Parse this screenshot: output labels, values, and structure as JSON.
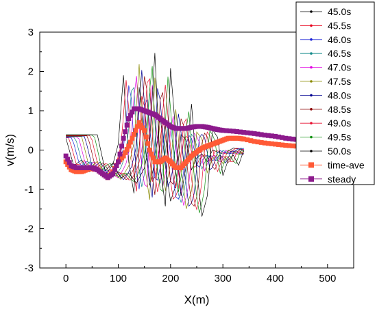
{
  "chart_data": {
    "type": "line",
    "title": "",
    "xlabel": "X(m)",
    "ylabel": "v(m/s)",
    "xlim": [
      -50,
      550
    ],
    "ylim": [
      -3,
      3
    ],
    "x_ticks": [
      0,
      100,
      200,
      300,
      400,
      500
    ],
    "y_ticks": [
      -3,
      -2,
      -1,
      0,
      1,
      2,
      3
    ],
    "grid": false,
    "legend": {
      "placement": "top-right, outside plot border"
    },
    "colors": {
      "45.0s": "#000000",
      "45.5s": "#e8001c",
      "46.0s": "#1a22d6",
      "46.5s": "#138a8a",
      "47.0s": "#e000e0",
      "47.5s": "#8a8a00",
      "48.0s": "#000090",
      "48.5s": "#8a0000",
      "49.0s": "#e81030",
      "49.5s": "#109010",
      "50.0s": "#000000",
      "time-ave": "#ff5a36",
      "steady": "#8c1a8c"
    },
    "series": [
      {
        "name": "45.0s",
        "marker": "square-small",
        "shift": 0,
        "x": [
          0,
          15,
          30,
          45,
          60,
          75,
          90,
          100,
          110,
          120,
          130,
          140,
          150,
          160,
          170,
          180,
          190,
          200,
          210,
          220,
          230,
          240,
          250,
          260,
          270,
          280,
          300,
          320,
          340
        ],
        "y": [
          0.3,
          -0.4,
          -0.25,
          -0.55,
          -0.45,
          -0.65,
          -0.35,
          0.15,
          1.9,
          -0.3,
          -1.1,
          1.6,
          0.3,
          -0.9,
          -0.3,
          0.9,
          -0.4,
          -1.3,
          -0.9,
          0.4,
          0.25,
          -0.5,
          -0.2,
          -0.1,
          -0.3,
          0.0,
          -0.1,
          0.05,
          0.0
        ]
      },
      {
        "name": "45.5s",
        "marker": "circle",
        "shift": 6,
        "x": [],
        "y": []
      },
      {
        "name": "46.0s",
        "marker": "triangle-up",
        "shift": 12,
        "x": [],
        "y": []
      },
      {
        "name": "46.5s",
        "marker": "triangle-down",
        "shift": 18,
        "x": [],
        "y": []
      },
      {
        "name": "47.0s",
        "marker": "triangle-left",
        "shift": 24,
        "x": [],
        "y": []
      },
      {
        "name": "47.5s",
        "marker": "triangle-right",
        "shift": 30,
        "x": [],
        "y": []
      },
      {
        "name": "48.0s",
        "marker": "diamond",
        "shift": 36,
        "x": [],
        "y": []
      },
      {
        "name": "48.5s",
        "marker": "square-small",
        "shift": 42,
        "x": [],
        "y": []
      },
      {
        "name": "49.0s",
        "marker": "circle",
        "shift": 48,
        "x": [],
        "y": []
      },
      {
        "name": "49.5s",
        "marker": "triangle-up",
        "shift": 54,
        "x": [],
        "y": []
      },
      {
        "name": "50.0s",
        "marker": "dot",
        "shift": 60,
        "x": [],
        "y": []
      },
      {
        "name": "time-ave",
        "marker": "square",
        "x": [
          0,
          10,
          20,
          30,
          40,
          50,
          60,
          70,
          80,
          90,
          100,
          110,
          120,
          130,
          140,
          150,
          160,
          170,
          180,
          190,
          200,
          210,
          220,
          230,
          240,
          250,
          260,
          270,
          280,
          290,
          300,
          310,
          320,
          330,
          340,
          360,
          380,
          400,
          420,
          440,
          460
        ],
        "y": [
          -0.3,
          -0.5,
          -0.55,
          -0.55,
          -0.5,
          -0.45,
          -0.5,
          -0.6,
          -0.7,
          -0.55,
          -0.3,
          -0.15,
          0.1,
          0.4,
          0.7,
          0.5,
          0.0,
          -0.3,
          -0.3,
          -0.2,
          -0.3,
          -0.45,
          -0.45,
          -0.3,
          -0.15,
          -0.05,
          0.05,
          0.1,
          0.15,
          0.2,
          0.25,
          0.3,
          0.3,
          0.3,
          0.28,
          0.22,
          0.18,
          0.15,
          0.12,
          0.1,
          0.08
        ]
      },
      {
        "name": "steady",
        "marker": "square",
        "x": [
          0,
          10,
          20,
          30,
          40,
          50,
          60,
          70,
          80,
          90,
          100,
          110,
          120,
          130,
          140,
          150,
          160,
          170,
          180,
          190,
          200,
          210,
          220,
          230,
          240,
          250,
          260,
          270,
          280,
          290,
          300,
          320,
          340,
          360,
          380,
          400,
          420,
          440,
          460
        ],
        "y": [
          -0.15,
          -0.4,
          -0.45,
          -0.45,
          -0.45,
          -0.45,
          -0.5,
          -0.6,
          -0.7,
          -0.6,
          -0.3,
          0.3,
          0.8,
          1.05,
          1.05,
          1.0,
          0.95,
          0.9,
          0.8,
          0.7,
          0.6,
          0.55,
          0.55,
          0.55,
          0.58,
          0.6,
          0.6,
          0.58,
          0.55,
          0.52,
          0.5,
          0.48,
          0.45,
          0.42,
          0.38,
          0.35,
          0.3,
          0.27,
          0.24
        ]
      }
    ]
  }
}
